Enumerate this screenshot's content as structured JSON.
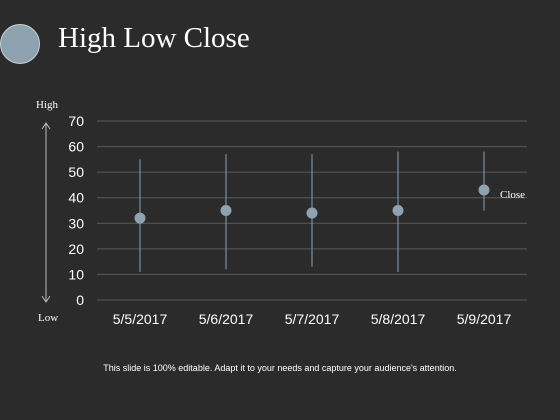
{
  "title": "High Low Close",
  "footer": "This slide is 100% editable. Adapt it to your needs and capture your audience's attention.",
  "arrow_labels": {
    "top": "High",
    "bottom": "Low"
  },
  "colors": {
    "background": "#2b2b2b",
    "marker": "#8fa2b0",
    "whisker": "#8fa2b0",
    "grid": "#5a5a5a"
  },
  "chart_data": {
    "type": "scatter",
    "categories": [
      "5/5/2017",
      "5/6/2017",
      "5/7/2017",
      "5/8/2017",
      "5/9/2017"
    ],
    "series": [
      {
        "name": "High",
        "values": [
          55,
          57,
          57,
          58,
          58
        ]
      },
      {
        "name": "Low",
        "values": [
          11,
          12,
          13,
          11,
          35
        ]
      },
      {
        "name": "Close",
        "values": [
          32,
          35,
          34,
          35,
          43
        ]
      }
    ],
    "ylim": [
      0,
      70
    ],
    "yticks": [
      0,
      10,
      20,
      30,
      40,
      50,
      60,
      70
    ],
    "grid": true,
    "close_label": "Close"
  }
}
